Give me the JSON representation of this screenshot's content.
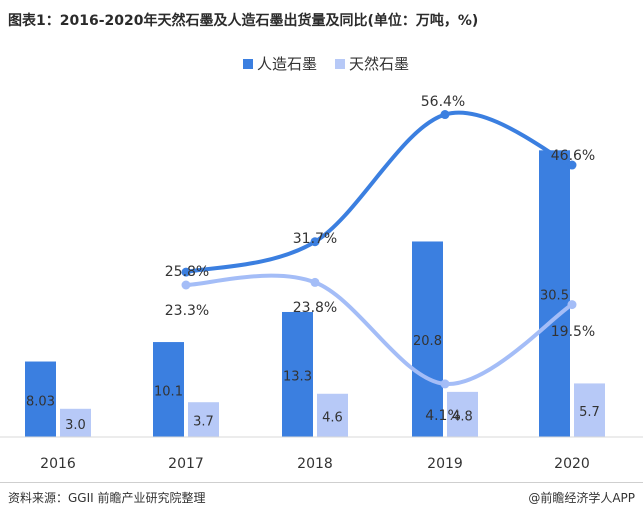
{
  "title": "图表1：2016-2020年天然石墨及人造石墨出货量及同比(单位：万吨，%)",
  "source": "资料来源：GGII 前瞻产业研究院整理",
  "brand": "@前瞻经济学人APP",
  "colors": {
    "artificial": "#3b7fe0",
    "natural": "#b7c9f7",
    "artificial_line": "#3b7fe0",
    "natural_line": "#a4bdf7"
  },
  "chart_data": {
    "type": "bar",
    "categories": [
      "2016",
      "2017",
      "2018",
      "2019",
      "2020"
    ],
    "series": [
      {
        "name": "人造石墨",
        "type": "bar",
        "values": [
          8.03,
          10.1,
          13.3,
          20.8,
          30.5
        ],
        "labels": [
          "8.03",
          "10.1",
          "13.3",
          "20.8",
          "30.5"
        ]
      },
      {
        "name": "天然石墨",
        "type": "bar",
        "values": [
          3.0,
          3.7,
          4.6,
          4.8,
          5.7
        ],
        "labels": [
          "3.0",
          "3.7",
          "4.6",
          "4.8",
          "5.7"
        ]
      }
    ],
    "growth_series": [
      {
        "series": "人造石墨",
        "type": "line",
        "categories": [
          "2017",
          "2018",
          "2019",
          "2020"
        ],
        "values": [
          25.8,
          31.7,
          56.4,
          46.6
        ],
        "labels": [
          "25.8%",
          "31.7%",
          "56.4%",
          "46.6%"
        ]
      },
      {
        "series": "天然石墨",
        "type": "line",
        "categories": [
          "2017",
          "2018",
          "2019",
          "2020"
        ],
        "values": [
          23.3,
          23.8,
          4.1,
          19.5
        ],
        "labels": [
          "23.3%",
          "23.8%",
          "4.1%",
          "19.5%"
        ]
      }
    ],
    "legend_position": "top-center",
    "grid": false
  }
}
